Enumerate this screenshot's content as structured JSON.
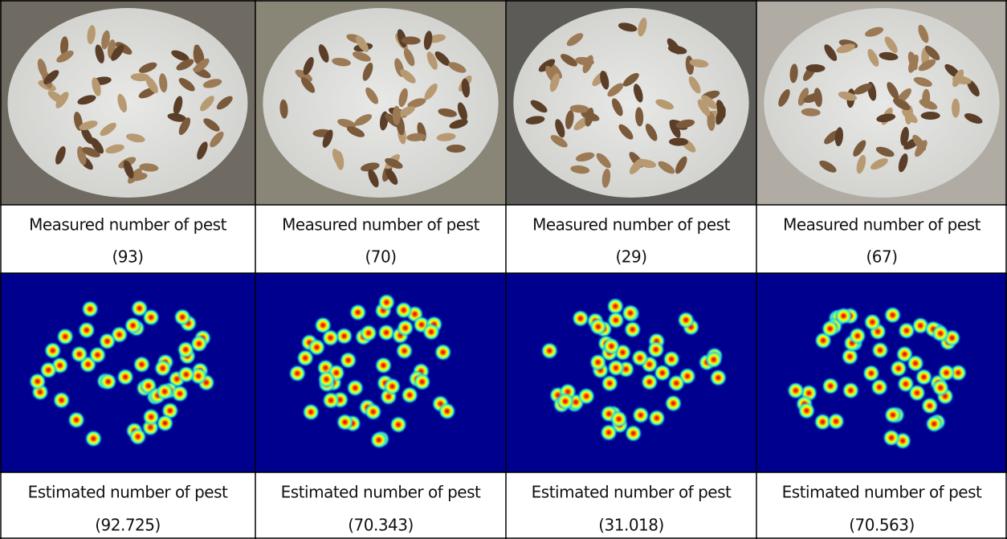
{
  "columns": [
    {
      "measured_label": "Measured number of pest",
      "measured_value": "(93)",
      "estimated_label": "Estimated number of pest",
      "estimated_value": "(92.725)"
    },
    {
      "measured_label": "Measured number of pest",
      "measured_value": "(70)",
      "estimated_label": "Estimated number of pest",
      "estimated_value": "(70.343)"
    },
    {
      "measured_label": "Measured number of pest",
      "measured_value": "(29)",
      "estimated_label": "Estimated number of pest",
      "estimated_value": "(31.018)"
    },
    {
      "measured_label": "Measured number of pest",
      "measured_value": "(67)",
      "estimated_label": "Estimated number of pest",
      "estimated_value": "(70.563)"
    }
  ]
}
